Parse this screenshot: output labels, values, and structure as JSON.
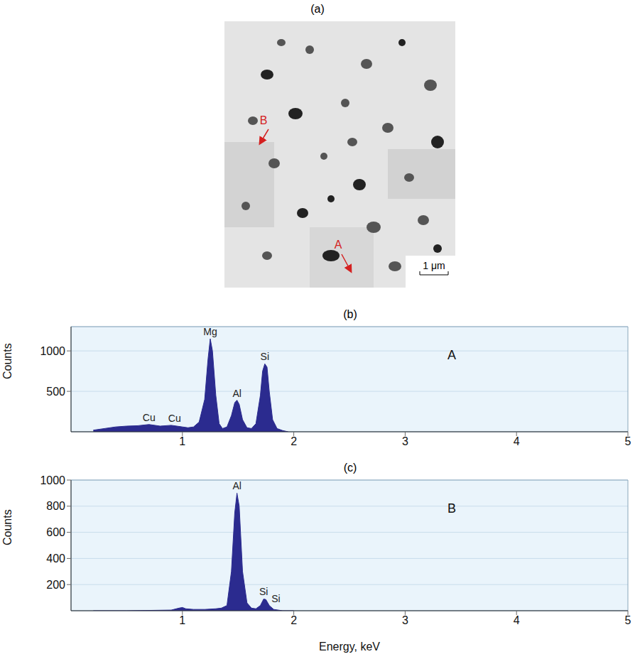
{
  "image": {
    "title": "(a)",
    "arrows": [
      "B",
      "A"
    ],
    "scale_bar": "1 μm"
  },
  "chart_data": [
    {
      "type": "area",
      "title": "(b)",
      "label": "A",
      "ylabel": "Counts",
      "color": "#2b2b8f",
      "grid": true,
      "xlim": [
        0,
        5
      ],
      "xticks": [
        1,
        2,
        3,
        4,
        5
      ],
      "ylim": [
        0,
        1300
      ],
      "yticks": [
        500,
        1000
      ],
      "x": [
        0.2,
        0.3,
        0.4,
        0.5,
        0.6,
        0.7,
        0.8,
        0.9,
        1.0,
        1.05,
        1.1,
        1.15,
        1.2,
        1.23,
        1.25,
        1.27,
        1.3,
        1.33,
        1.36,
        1.4,
        1.44,
        1.47,
        1.49,
        1.51,
        1.54,
        1.58,
        1.62,
        1.66,
        1.7,
        1.72,
        1.74,
        1.76,
        1.78,
        1.81,
        1.85,
        1.9,
        1.95
      ],
      "values": [
        20,
        40,
        60,
        70,
        75,
        90,
        70,
        80,
        60,
        50,
        60,
        120,
        400,
        900,
        1150,
        1000,
        450,
        100,
        40,
        60,
        200,
        360,
        390,
        340,
        150,
        50,
        40,
        100,
        450,
        750,
        840,
        800,
        500,
        150,
        40,
        15,
        0
      ],
      "annotations": [
        {
          "text": "Cu",
          "x": 0.7,
          "y": 90
        },
        {
          "text": "Cu",
          "x": 0.93,
          "y": 80
        },
        {
          "text": "Mg",
          "x": 1.25,
          "y": 1150
        },
        {
          "text": "Al",
          "x": 1.49,
          "y": 390
        },
        {
          "text": "Si",
          "x": 1.74,
          "y": 840
        }
      ]
    },
    {
      "type": "area",
      "title": "(c)",
      "label": "B",
      "ylabel": "Counts",
      "xlabel": "Energy, keV",
      "color": "#2b2b8f",
      "grid": true,
      "xlim": [
        0,
        5
      ],
      "xticks": [
        1,
        2,
        3,
        4,
        5
      ],
      "ylim": [
        0,
        1000
      ],
      "yticks": [
        200,
        400,
        600,
        800,
        1000
      ],
      "x": [
        0.2,
        0.5,
        0.9,
        0.97,
        1.0,
        1.03,
        1.1,
        1.2,
        1.3,
        1.35,
        1.4,
        1.44,
        1.47,
        1.49,
        1.51,
        1.54,
        1.58,
        1.62,
        1.66,
        1.7,
        1.73,
        1.75,
        1.78,
        1.82,
        1.9,
        2.0
      ],
      "values": [
        0,
        0,
        5,
        20,
        25,
        15,
        10,
        10,
        15,
        20,
        40,
        300,
        750,
        900,
        800,
        300,
        60,
        20,
        15,
        40,
        90,
        85,
        40,
        10,
        0,
        0
      ],
      "annotations": [
        {
          "text": "Al",
          "x": 1.49,
          "y": 900
        },
        {
          "text": "Si",
          "x": 1.73,
          "y": 90
        },
        {
          "text": "Si",
          "x": 1.84,
          "y": 40
        }
      ]
    }
  ]
}
